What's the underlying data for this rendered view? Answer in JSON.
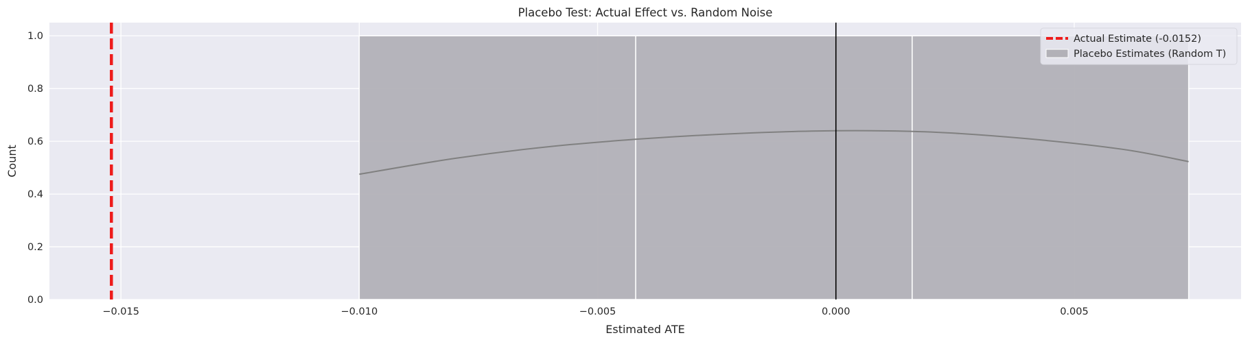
{
  "chart_data": {
    "type": "bar",
    "title": "Placebo Test: Actual Effect vs. Random Noise",
    "xlabel": "Estimated ATE",
    "ylabel": "Count",
    "xlim": [
      -0.0165,
      0.0085
    ],
    "ylim": [
      0,
      1.05
    ],
    "x_ticks": [
      -0.015,
      -0.01,
      -0.005,
      0.0,
      0.005
    ],
    "x_tick_labels": [
      "−0.015",
      "−0.010",
      "−0.005",
      "0.000",
      "0.005"
    ],
    "y_ticks": [
      0.0,
      0.2,
      0.4,
      0.6,
      0.8,
      1.0
    ],
    "y_tick_labels": [
      "0.0",
      "0.2",
      "0.4",
      "0.6",
      "0.8",
      "1.0"
    ],
    "grid": true,
    "legend_position": "top-right",
    "histogram_bins": [
      {
        "start": -0.01,
        "end": -0.0042,
        "count": 1
      },
      {
        "start": -0.0042,
        "end": 0.0016,
        "count": 1
      },
      {
        "start": 0.0016,
        "end": 0.0074,
        "count": 1
      }
    ],
    "kde_curve": {
      "x": [
        -0.01,
        -0.008,
        -0.006,
        -0.004,
        -0.002,
        0.0,
        0.002,
        0.004,
        0.006,
        0.0074
      ],
      "y": [
        0.475,
        0.535,
        0.58,
        0.61,
        0.63,
        0.64,
        0.635,
        0.61,
        0.57,
        0.523
      ]
    },
    "vertical_lines": [
      {
        "x": -0.0152,
        "style": "dashed",
        "color": "#ee1c1c",
        "label": "Actual Estimate (-0.0152)"
      },
      {
        "x": 0.0,
        "style": "solid",
        "color": "#000000"
      }
    ],
    "legend": [
      {
        "label": "Actual Estimate (-0.0152)",
        "kind": "line",
        "color": "#ee1c1c"
      },
      {
        "label": "Placebo Estimates (Random T)",
        "kind": "patch",
        "color": "#b2b1b7"
      }
    ],
    "colors": {
      "background": "#eaeaf2",
      "grid": "#ffffff",
      "bar_fill": "#b2b1b7",
      "kde": "#808080"
    }
  }
}
